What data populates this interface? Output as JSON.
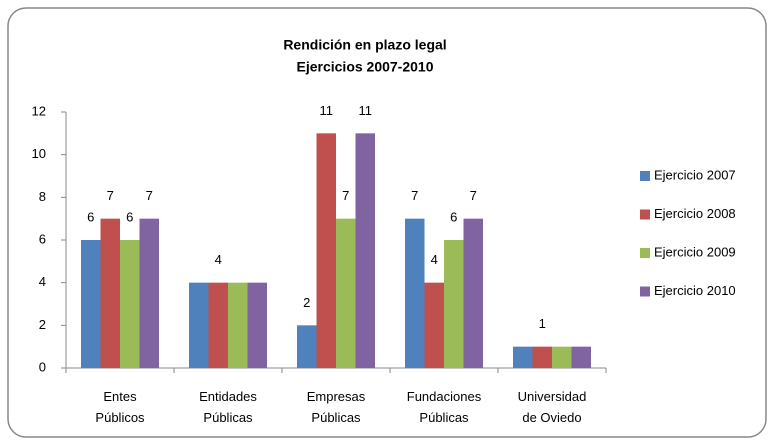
{
  "chart_data": {
    "type": "bar",
    "title": "Rendición en plazo legal",
    "subtitle": "Ejercicios 2007-2010",
    "categories": [
      "Entes Públicos",
      "Entidades Públicas",
      "Empresas Públicas",
      "Fundaciones Públicas",
      "Universidad de Oviedo"
    ],
    "series": [
      {
        "name": "Ejercicio 2007",
        "color": "#4f81bd",
        "values": [
          6,
          4,
          2,
          7,
          1
        ],
        "value_labels": [
          "6",
          null,
          "2",
          "7",
          null
        ]
      },
      {
        "name": "Ejercicio 2008",
        "color": "#c0504d",
        "values": [
          7,
          4,
          11,
          4,
          1
        ],
        "value_labels": [
          "7",
          "4",
          "11",
          "4",
          "1"
        ]
      },
      {
        "name": "Ejercicio 2009",
        "color": "#9bbb59",
        "values": [
          6,
          4,
          7,
          6,
          1
        ],
        "value_labels": [
          "6",
          null,
          "7",
          "6",
          null
        ]
      },
      {
        "name": "Ejercicio 2010",
        "color": "#8064a2",
        "values": [
          7,
          4,
          11,
          7,
          1
        ],
        "value_labels": [
          "7",
          null,
          "11",
          "7",
          null
        ]
      }
    ],
    "ylim": [
      0,
      12
    ],
    "yticks": [
      0,
      2,
      4,
      6,
      8,
      10,
      12
    ],
    "grid": false,
    "legend": "right"
  }
}
